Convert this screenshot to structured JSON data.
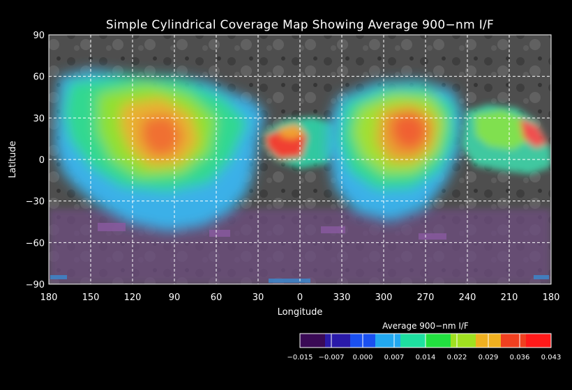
{
  "map": {
    "title": "Simple Cylindrical Coverage Map Showing Average 900−nm I/F",
    "x_axis_label": "Longitude",
    "y_axis_label": "Latitude",
    "lon_ticks": [
      "180",
      "150",
      "120",
      "90",
      "60",
      "30",
      "0",
      "330",
      "300",
      "270",
      "240",
      "210",
      "180"
    ],
    "lat_ticks": [
      "90",
      "60",
      "30",
      "0",
      "−30",
      "−60",
      "−90"
    ],
    "grid": true,
    "grid_style": "dashed white",
    "base_map_color": "#5a5a5a",
    "no_coverage_colors": [
      "#7a5a8a",
      "#3a8ad0"
    ]
  },
  "colorbar": {
    "title": "Average 900−nm I/F",
    "tick_labels": [
      "−0.015",
      "−0.007",
      "0.000",
      "0.007",
      "0.014",
      "0.022",
      "0.029",
      "0.036",
      "0.043"
    ],
    "range": [
      -0.015,
      0.043
    ],
    "colors": [
      "#3a0a55",
      "#2a1aa8",
      "#1a50f0",
      "#22a8f0",
      "#1ee0a0",
      "#22e040",
      "#a0e020",
      "#f0b020",
      "#f04020",
      "#ff1a1a"
    ]
  }
}
